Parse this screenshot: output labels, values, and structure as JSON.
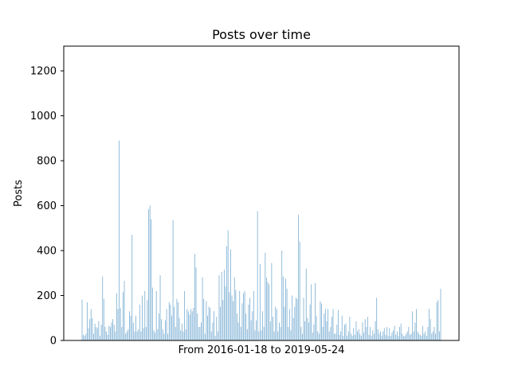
{
  "chart_data": {
    "type": "bar",
    "title": "Posts over time",
    "xlabel": "From 2016-01-18 to 2019-05-24",
    "ylabel": "Posts",
    "ylim": [
      0,
      1310
    ],
    "yticks": [
      "0",
      "200",
      "400",
      "600",
      "800",
      "1000",
      "1200"
    ],
    "x_range": [
      "2016-01-18",
      "2019-05-24"
    ],
    "grid": false,
    "bar_color": "#1f77b4",
    "bar_opacity": 0.55,
    "series": [
      {
        "values": [
          182,
          25,
          20,
          30,
          170,
          55,
          95,
          140,
          100,
          30,
          75,
          60,
          55,
          85,
          20,
          70,
          285,
          185,
          60,
          40,
          25,
          65,
          60,
          80,
          95,
          70,
          40,
          210,
          140,
          890,
          145,
          60,
          215,
          265,
          30,
          40,
          50,
          130,
          110,
          470,
          80,
          40,
          110,
          40,
          50,
          160,
          40,
          200,
          55,
          220,
          60,
          180,
          585,
          600,
          540,
          235,
          45,
          35,
          220,
          50,
          120,
          290,
          95,
          50,
          30,
          90,
          140,
          30,
          170,
          160,
          110,
          535,
          150,
          60,
          185,
          170,
          100,
          45,
          75,
          40,
          220,
          50,
          140,
          130,
          115,
          140,
          130,
          145,
          385,
          325,
          120,
          60,
          60,
          80,
          280,
          185,
          30,
          175,
          110,
          150,
          145,
          40,
          80,
          130,
          20,
          105,
          40,
          290,
          150,
          305,
          180,
          315,
          240,
          420,
          490,
          215,
          405,
          200,
          175,
          280,
          225,
          120,
          80,
          220,
          60,
          165,
          210,
          220,
          120,
          50,
          160,
          190,
          90,
          130,
          220,
          45,
          90,
          575,
          40,
          340,
          45,
          130,
          60,
          390,
          280,
          260,
          250,
          85,
          345,
          105,
          40,
          150,
          140,
          40,
          80,
          60,
          400,
          285,
          150,
          275,
          230,
          60,
          140,
          45,
          200,
          100,
          150,
          190,
          185,
          560,
          440,
          60,
          30,
          190,
          85,
          320,
          100,
          80,
          160,
          250,
          35,
          70,
          255,
          110,
          40,
          30,
          175,
          165,
          60,
          120,
          140,
          85,
          140,
          40,
          60,
          105,
          140,
          30,
          30,
          70,
          135,
          25,
          40,
          110,
          20,
          70,
          75,
          20,
          40,
          105,
          30,
          20,
          55,
          25,
          85,
          40,
          50,
          30,
          20,
          80,
          35,
          95,
          60,
          105,
          25,
          60,
          20,
          45,
          30,
          85,
          190,
          50,
          30,
          40,
          20,
          40,
          55,
          25,
          60,
          20,
          55,
          20,
          35,
          45,
          65,
          25,
          40,
          20,
          60,
          75,
          30,
          20,
          20,
          30,
          40,
          60,
          25,
          30,
          130,
          40,
          80,
          140,
          40,
          30,
          25,
          20,
          65,
          30,
          40,
          20,
          60,
          140,
          95,
          30,
          40,
          60,
          30,
          170,
          180,
          40,
          230
        ]
      }
    ]
  }
}
